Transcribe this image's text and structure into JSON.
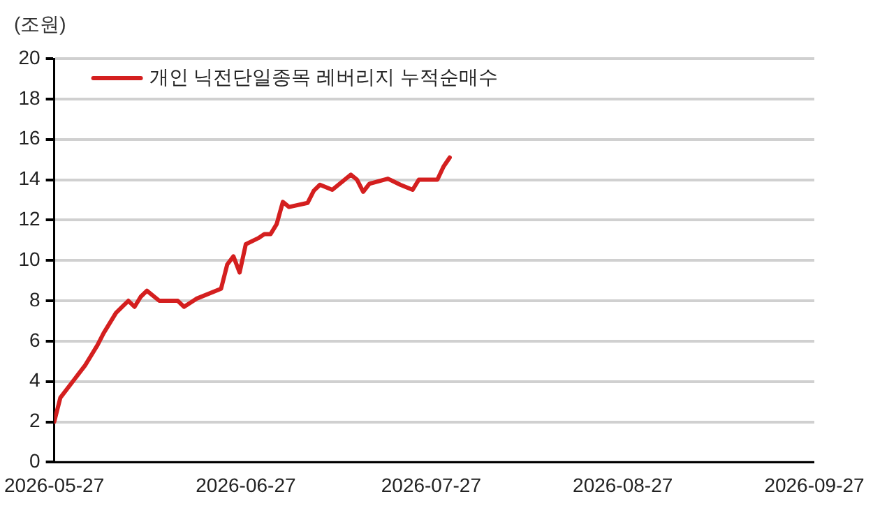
{
  "chart_data": {
    "type": "line",
    "ylabel": "(조원)",
    "x": [
      "2026-05-27",
      "2026-05-28",
      "2026-05-30",
      "2026-05-31",
      "2026-06-01",
      "2026-06-03",
      "2026-06-04",
      "2026-06-06",
      "2026-06-07",
      "2026-06-08",
      "2026-06-09",
      "2026-06-10",
      "2026-06-11",
      "2026-06-13",
      "2026-06-16",
      "2026-06-17",
      "2026-06-19",
      "2026-06-23",
      "2026-06-24",
      "2026-06-25",
      "2026-06-26",
      "2026-06-27",
      "2026-06-29",
      "2026-06-30",
      "2026-07-01",
      "2026-07-02",
      "2026-07-03",
      "2026-07-04",
      "2026-07-07",
      "2026-07-08",
      "2026-07-09",
      "2026-07-11",
      "2026-07-14",
      "2026-07-15",
      "2026-07-16",
      "2026-07-17",
      "2026-07-20",
      "2026-07-22",
      "2026-07-24",
      "2026-07-25",
      "2026-07-28",
      "2026-07-29",
      "2026-07-30"
    ],
    "series": [
      {
        "name": "개인 닉전단일종목 레버리지 누적순매수",
        "color": "#d41f1f",
        "values": [
          2.0,
          3.2,
          4.0,
          4.4,
          4.8,
          5.8,
          6.4,
          7.4,
          7.7,
          8.0,
          7.7,
          8.2,
          8.5,
          8.0,
          8.0,
          7.7,
          8.1,
          8.6,
          9.8,
          10.2,
          9.4,
          10.8,
          11.1,
          11.3,
          11.3,
          11.8,
          12.9,
          12.65,
          12.85,
          13.45,
          13.75,
          13.5,
          14.25,
          14.0,
          13.4,
          13.8,
          14.05,
          13.75,
          13.5,
          14.0,
          14.0,
          14.65,
          15.1
        ]
      }
    ],
    "xlim": [
      "2026-05-27",
      "2026-09-27"
    ],
    "xticks": [
      "2026-05-27",
      "2026-06-27",
      "2026-07-27",
      "2026-08-27",
      "2026-09-27"
    ],
    "ylim": [
      0,
      20
    ],
    "yticks": [
      0,
      2,
      4,
      6,
      8,
      10,
      12,
      14,
      16,
      18,
      20
    ],
    "grid": "y",
    "legend": "top left",
    "marker": "none",
    "line_style": "solid"
  }
}
